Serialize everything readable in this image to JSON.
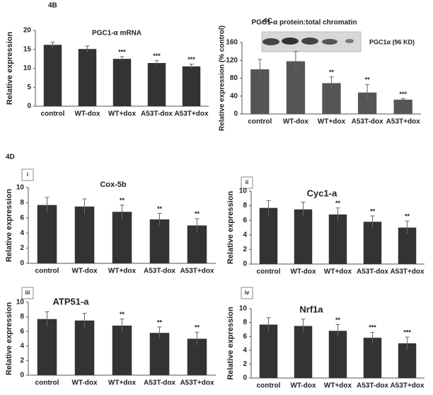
{
  "section_label": "4D",
  "chart_data": [
    {
      "type": "bar",
      "panel": "4B",
      "title": "PGC1-α mRNA",
      "y_label": "Relative expression",
      "categories": [
        "control",
        "WT-dox",
        "WT+dox",
        "A53T-dox",
        "A53T+dox"
      ],
      "values": [
        16.2,
        15.1,
        12.5,
        11.4,
        10.5
      ],
      "errors": [
        0.7,
        0.8,
        0.6,
        0.6,
        0.6
      ],
      "annotations": [
        null,
        null,
        "***",
        "***",
        "***"
      ],
      "color": "#333333",
      "ylim": [
        0,
        20
      ],
      "yticks": [
        0,
        5,
        10,
        15,
        20
      ]
    },
    {
      "type": "bar",
      "panel": "4C",
      "title": "PGC1-α protein:total chromatin",
      "y_label": "Relative expression (% control)",
      "blot_label": "PGC1α (96 KD)",
      "categories": [
        "control",
        "WT-dox",
        "WT+dox",
        "A53T-dox",
        "A53T+dox"
      ],
      "values": [
        100,
        118,
        69,
        48,
        32
      ],
      "errors": [
        22,
        22,
        14,
        18,
        2
      ],
      "annotations": [
        null,
        null,
        "**",
        "**",
        "***"
      ],
      "color": "#555555",
      "ylim": [
        0,
        160
      ],
      "yticks": [
        0,
        40,
        80,
        120,
        160
      ]
    },
    {
      "type": "bar",
      "panel": "i",
      "title": "Cox-5b",
      "y_label": "Relative expression",
      "categories": [
        "control",
        "WT-dox",
        "WT+dox",
        "A53T-dox",
        "A53T+dox"
      ],
      "values": [
        7.7,
        7.5,
        6.8,
        5.8,
        5.0
      ],
      "errors": [
        1.0,
        1.0,
        0.9,
        0.8,
        0.9
      ],
      "annotations": [
        null,
        null,
        "**",
        "**",
        "**"
      ],
      "color": "#333333",
      "ylim": [
        0,
        10
      ],
      "yticks": [
        0,
        2,
        4,
        6,
        8,
        10
      ]
    },
    {
      "type": "bar",
      "panel": "ii",
      "title": "Cyc1-a",
      "y_label": "Relative expression",
      "categories": [
        "control",
        "WT-dox",
        "WT+dox",
        "A53T-dox",
        "A53T+dox"
      ],
      "values": [
        7.7,
        7.5,
        6.8,
        5.8,
        5.0
      ],
      "errors": [
        1.0,
        1.0,
        0.9,
        0.8,
        0.9
      ],
      "annotations": [
        null,
        null,
        "**",
        "**",
        "**"
      ],
      "color": "#333333",
      "ylim": [
        0,
        10
      ],
      "yticks": [
        0,
        2,
        4,
        6,
        8,
        10
      ]
    },
    {
      "type": "bar",
      "panel": "iii",
      "title": "ATP51-a",
      "y_label": "Relative expression",
      "categories": [
        "control",
        "WT-dox",
        "WT+dox",
        "A53T-dox",
        "A53T+dox"
      ],
      "values": [
        7.7,
        7.5,
        6.8,
        5.8,
        5.0
      ],
      "errors": [
        1.0,
        1.0,
        0.9,
        0.8,
        0.9
      ],
      "annotations": [
        null,
        null,
        "**",
        "**",
        "**"
      ],
      "color": "#333333",
      "ylim": [
        0,
        10
      ],
      "yticks": [
        0,
        2,
        4,
        6,
        8,
        10
      ]
    },
    {
      "type": "bar",
      "panel": "iv",
      "title": "Nrf1a",
      "y_label": "Relative expression",
      "categories": [
        "control",
        "WT-dox",
        "WT+dox",
        "A53T-dox",
        "A53T+dox"
      ],
      "values": [
        7.7,
        7.5,
        6.8,
        5.8,
        5.0
      ],
      "errors": [
        1.0,
        1.0,
        0.9,
        0.8,
        0.9
      ],
      "annotations": [
        null,
        null,
        "**",
        "***",
        "***"
      ],
      "color": "#333333",
      "ylim": [
        0,
        10
      ],
      "yticks": [
        0,
        2,
        4,
        6,
        8,
        10
      ]
    }
  ]
}
